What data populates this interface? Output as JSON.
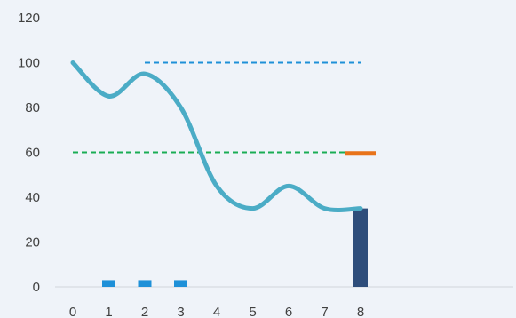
{
  "chart_data": {
    "type": "line",
    "title": "",
    "xlabel": "",
    "ylabel": "",
    "x_ticks": [
      0,
      1,
      2,
      3,
      4,
      5,
      6,
      7,
      8
    ],
    "y_ticks": [
      0,
      20,
      40,
      60,
      80,
      100,
      120
    ],
    "xlim": [
      0,
      8
    ],
    "ylim": [
      0,
      120
    ],
    "grid": false,
    "legend": "none",
    "series": [
      {
        "kind": "smooth-line",
        "color": "#4bacc6",
        "x": [
          0,
          1,
          2,
          3,
          4,
          5,
          6,
          7,
          8
        ],
        "y": [
          100,
          85,
          95,
          80,
          45,
          35,
          45,
          35,
          35
        ]
      },
      {
        "kind": "dashed-line",
        "color": "#1e90d8",
        "x": [
          2,
          8
        ],
        "y": [
          100,
          100
        ]
      },
      {
        "kind": "dashed-line",
        "color": "#1aad55",
        "x": [
          0,
          8
        ],
        "y": [
          60,
          60
        ]
      },
      {
        "kind": "marker-dash",
        "color": "#e8731a",
        "x": [
          8
        ],
        "y": [
          59.5
        ]
      },
      {
        "kind": "small-bar",
        "color": "#1e90d8",
        "x": [
          1,
          2,
          3
        ],
        "y": [
          3,
          3,
          3
        ]
      },
      {
        "kind": "bar",
        "color": "#2e4d7b",
        "x": [
          8
        ],
        "y": [
          35
        ]
      }
    ]
  }
}
